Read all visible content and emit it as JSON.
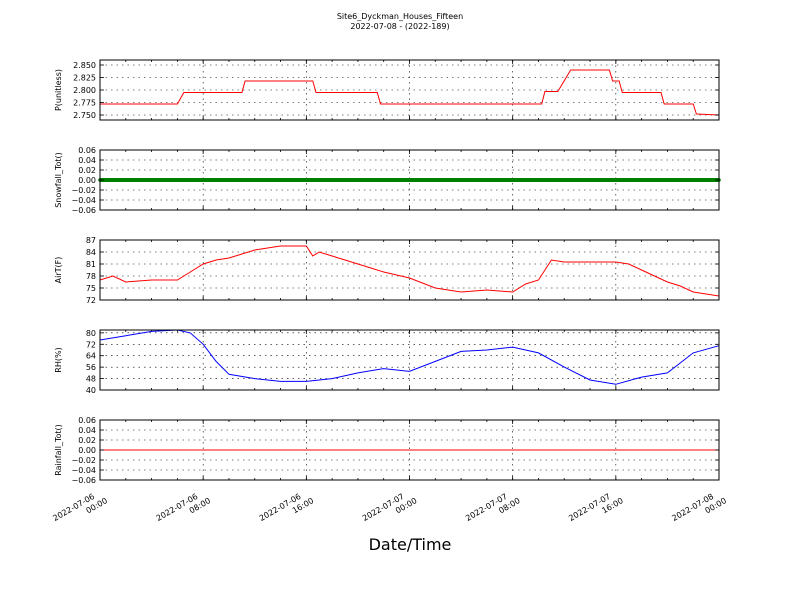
{
  "figure": {
    "title": "Site6_Dyckman_Houses_Fifteen",
    "subtitle": "2022-07-08 - (2022-189)",
    "xlabel": "Date/Time",
    "xtick_labels": [
      [
        "2022-07-06",
        "00:00"
      ],
      [
        "2022-07-06",
        "08:00"
      ],
      [
        "2022-07-06",
        "16:00"
      ],
      [
        "2022-07-07",
        "00:00"
      ],
      [
        "2022-07-07",
        "08:00"
      ],
      [
        "2022-07-07",
        "16:00"
      ],
      [
        "2022-07-08",
        "00:00"
      ]
    ]
  },
  "chart_data": [
    {
      "type": "line",
      "ylabel": "P(unitless)",
      "color": "#ff0000",
      "ylim": [
        2.74,
        2.86
      ],
      "yticks": [
        "2.750",
        "2.775",
        "2.800",
        "2.825",
        "2.850"
      ],
      "ytick_values": [
        2.75,
        2.775,
        2.8,
        2.825,
        2.85
      ],
      "grid": true,
      "x": [
        "2022-07-06 00:00",
        "2022-07-06 06:00",
        "2022-07-06 06:30",
        "2022-07-06 11:00",
        "2022-07-06 11:15",
        "2022-07-06 16:30",
        "2022-07-06 16:45",
        "2022-07-06 21:30",
        "2022-07-06 21:45",
        "2022-07-07 08:00",
        "2022-07-07 10:15",
        "2022-07-07 10:30",
        "2022-07-07 11:30",
        "2022-07-07 12:30",
        "2022-07-07 13:00",
        "2022-07-07 15:30",
        "2022-07-07 15:45",
        "2022-07-07 16:15",
        "2022-07-07 16:30",
        "2022-07-07 19:30",
        "2022-07-07 19:45",
        "2022-07-07 22:00",
        "2022-07-07 22:15",
        "2022-07-08 00:00"
      ],
      "values": [
        2.772,
        2.772,
        2.795,
        2.795,
        2.818,
        2.818,
        2.795,
        2.795,
        2.772,
        2.772,
        2.772,
        2.797,
        2.797,
        2.84,
        2.84,
        2.84,
        2.818,
        2.818,
        2.795,
        2.795,
        2.772,
        2.772,
        2.752,
        2.75
      ]
    },
    {
      "type": "line",
      "ylabel": "Snowfall_Tot()",
      "color": "#008000",
      "ylim": [
        -0.06,
        0.06
      ],
      "yticks": [
        "−0.06",
        "−0.04",
        "−0.02",
        "0.00",
        "0.02",
        "0.04",
        "0.06"
      ],
      "ytick_values": [
        -0.06,
        -0.04,
        -0.02,
        0.0,
        0.02,
        0.04,
        0.06
      ],
      "grid": true,
      "markers": true,
      "x": [
        "2022-07-06 00:00",
        "2022-07-08 00:00"
      ],
      "values": [
        0.0,
        0.0
      ]
    },
    {
      "type": "line",
      "ylabel": "AirT(F)",
      "color": "#ff0000",
      "ylim": [
        72,
        87
      ],
      "yticks": [
        "72",
        "75",
        "78",
        "81",
        "84",
        "87"
      ],
      "ytick_values": [
        72,
        75,
        78,
        81,
        84,
        87
      ],
      "grid": true,
      "x": [
        "2022-07-06 00:00",
        "2022-07-06 01:00",
        "2022-07-06 02:00",
        "2022-07-06 04:00",
        "2022-07-06 06:00",
        "2022-07-06 07:00",
        "2022-07-06 08:00",
        "2022-07-06 09:00",
        "2022-07-06 10:00",
        "2022-07-06 11:00",
        "2022-07-06 12:00",
        "2022-07-06 13:00",
        "2022-07-06 14:00",
        "2022-07-06 15:00",
        "2022-07-06 16:00",
        "2022-07-06 16:30",
        "2022-07-06 17:00",
        "2022-07-06 18:00",
        "2022-07-06 19:00",
        "2022-07-06 20:00",
        "2022-07-06 21:00",
        "2022-07-06 22:00",
        "2022-07-07 00:00",
        "2022-07-07 02:00",
        "2022-07-07 04:00",
        "2022-07-07 06:00",
        "2022-07-07 08:00",
        "2022-07-07 09:00",
        "2022-07-07 10:00",
        "2022-07-07 11:00",
        "2022-07-07 12:00",
        "2022-07-07 13:00",
        "2022-07-07 14:00",
        "2022-07-07 15:00",
        "2022-07-07 16:00",
        "2022-07-07 17:00",
        "2022-07-07 18:00",
        "2022-07-07 19:00",
        "2022-07-07 20:00",
        "2022-07-07 21:00",
        "2022-07-07 22:00",
        "2022-07-07 23:00",
        "2022-07-08 00:00"
      ],
      "values": [
        77,
        78,
        76.5,
        77,
        77,
        79,
        81,
        82,
        82.5,
        83.5,
        84.5,
        85,
        85.5,
        85.5,
        85.5,
        83,
        84,
        83,
        82,
        81,
        80,
        79,
        77.5,
        75,
        74,
        74.5,
        74,
        76,
        77,
        82,
        81.5,
        81.5,
        81.5,
        81.5,
        81.5,
        81,
        79.5,
        78,
        76.5,
        75.5,
        74,
        73.5,
        73
      ]
    },
    {
      "type": "line",
      "ylabel": "RH(%)",
      "color": "#0000ff",
      "ylim": [
        40,
        82
      ],
      "yticks": [
        "40",
        "48",
        "56",
        "64",
        "72",
        "80"
      ],
      "ytick_values": [
        40,
        48,
        56,
        64,
        72,
        80
      ],
      "grid": true,
      "x": [
        "2022-07-06 00:00",
        "2022-07-06 02:00",
        "2022-07-06 04:00",
        "2022-07-06 06:00",
        "2022-07-06 07:00",
        "2022-07-06 08:00",
        "2022-07-06 09:00",
        "2022-07-06 10:00",
        "2022-07-06 12:00",
        "2022-07-06 14:00",
        "2022-07-06 16:00",
        "2022-07-06 18:00",
        "2022-07-06 20:00",
        "2022-07-06 22:00",
        "2022-07-07 00:00",
        "2022-07-07 02:00",
        "2022-07-07 04:00",
        "2022-07-07 06:00",
        "2022-07-07 08:00",
        "2022-07-07 10:00",
        "2022-07-07 12:00",
        "2022-07-07 14:00",
        "2022-07-07 16:00",
        "2022-07-07 18:00",
        "2022-07-07 20:00",
        "2022-07-07 22:00",
        "2022-07-08 00:00"
      ],
      "values": [
        75,
        78,
        81,
        82,
        80,
        72,
        60,
        51,
        48,
        46,
        46,
        48,
        52,
        55,
        53,
        60,
        67,
        68,
        70,
        66,
        56,
        47,
        44,
        49,
        52,
        66,
        71
      ]
    },
    {
      "type": "line",
      "ylabel": "Rainfall_Tot()",
      "color": "#ff0000",
      "ylim": [
        -0.06,
        0.06
      ],
      "yticks": [
        "−0.06",
        "−0.04",
        "−0.02",
        "0.00",
        "0.02",
        "0.04",
        "0.06"
      ],
      "ytick_values": [
        -0.06,
        -0.04,
        -0.02,
        0.0,
        0.02,
        0.04,
        0.06
      ],
      "grid": true,
      "x": [
        "2022-07-06 00:00",
        "2022-07-08 00:00"
      ],
      "values": [
        0.0,
        0.0
      ]
    }
  ]
}
